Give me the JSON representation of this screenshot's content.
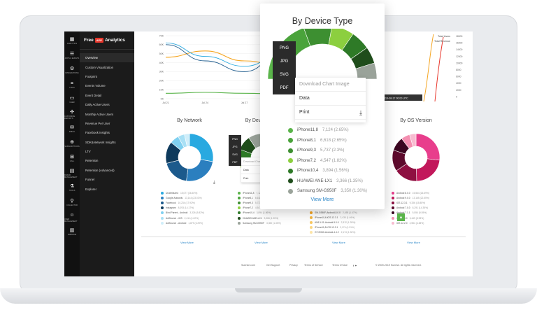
{
  "sidebar": {
    "icons": [
      {
        "glyph": "▦",
        "label": "ANALYTICS"
      },
      {
        "glyph": "☰",
        "label": "APPS & EVENTS"
      },
      {
        "glyph": "⚙",
        "label": "INTEGRATIONS"
      },
      {
        "glyph": "⌗",
        "label": "LINKS"
      },
      {
        "glyph": "▭",
        "label": "USER"
      },
      {
        "glyph": "✣",
        "label": "CUSTOMIZE REPORTS"
      },
      {
        "glyph": "✉",
        "label": "INBOX"
      },
      {
        "glyph": "⊕",
        "label": "SUBSCRIPTIONS"
      },
      {
        "glyph": "⊞",
        "label": "CALL"
      },
      {
        "glyph": "▤",
        "label": "FRAUD MANAGEMENT"
      },
      {
        "glyph": "⚗",
        "label": "TOOLS"
      },
      {
        "glyph": "⚲",
        "label": "COLLECTOR"
      },
      {
        "glyph": "☺",
        "label": "USER MANAGEMENT"
      },
      {
        "glyph": "▥",
        "label": "PREMIUM"
      }
    ],
    "brand": {
      "prefix": "Free",
      "badge": "APP",
      "name": "Analytics",
      "sub": "BEHAVIOR"
    },
    "menu": [
      "Overview",
      "Custom Visualization",
      "Footprint",
      "Events Volume",
      "Event Detail",
      "Daily Active Users",
      "Monthly Active Users",
      "Revenue Per User",
      "Facebook Insights",
      "SDK&Network Insights",
      "LTV",
      "Retention",
      "Retention (Advanced)",
      "Funnel",
      "Explorer"
    ]
  },
  "topChart": {
    "yTicks": [
      "70K",
      "60K",
      "50K",
      "40K",
      "30K",
      "20K",
      "10K",
      "0K"
    ],
    "xTicks": [
      "Jul 21",
      "Jul 24",
      "Jul 27",
      "Jul 30",
      "Aug 02"
    ],
    "legend": [
      "Total Users",
      "Total Revenue"
    ],
    "rightTicks": [
      "18000",
      "16000",
      "14000",
      "12000",
      "10000",
      "8000",
      "6000",
      "4000",
      "2000",
      "0"
    ],
    "tooltip": "2019-08-17 00:00 UTC"
  },
  "cards": {
    "network": {
      "title": "By Network",
      "items": [
        {
          "label": "Unattributed",
          "value": "15,077 (26.40%)",
          "color": "#29a9e0"
        },
        {
          "label": "Google Adwords",
          "value": "13,144 (23.02%)",
          "color": "#2b7fbf"
        },
        {
          "label": "Facebook",
          "value": "10,234 (17.92%)",
          "color": "#1c5a8c"
        },
        {
          "label": "Instagram",
          "value": "8,093 (14.17%)",
          "color": "#0e3a5c"
        },
        {
          "label": "Bind Parent - Android",
          "value": "3,326 (5.82%)",
          "color": "#7fd0f0"
        },
        {
          "label": "AdiSource - iOS",
          "value": "2,411 (4.22%)",
          "color": "#a8e0f5"
        },
        {
          "label": "AdiSource - Android",
          "value": "1,879 (3.29%)",
          "color": "#cfeefa"
        }
      ],
      "viewMore": "View More"
    },
    "device": {
      "title": "By Device Type",
      "items": [
        {
          "label": "iPhone11,8",
          "value": "7,124 (2.65%)",
          "color": "#5ab44a"
        },
        {
          "label": "iPhone8,1",
          "value": "6,618 (2.65%)",
          "color": "#4aa33b"
        },
        {
          "label": "iPhone9,3",
          "value": "5,737 (2.3%)",
          "color": "#3d8f31"
        },
        {
          "label": "iPhone7,2",
          "value": "4,547 (1.82%)",
          "color": "#8ccf3f"
        },
        {
          "label": "iPhone10,4",
          "value": "3,894 (1.56%)",
          "color": "#2e7a27"
        },
        {
          "label": "HUAWEI ANE-LX1",
          "value": "3,366 (1.35%)",
          "color": "#1f4d1b"
        },
        {
          "label": "Samsung SM-G950F",
          "value": "3,350 (1.30%)",
          "color": "#9aa39a"
        }
      ],
      "viewMore": "View More"
    },
    "sdk": {
      "items": [
        {
          "label": "SM-G950F-Android-8.0.0",
          "value": "2,455 (1.47%)",
          "color": "#f5a623"
        },
        {
          "label": "iPhone10,6-iOS-12.3.1",
          "value": "2,430 (1.46%)",
          "color": "#f7b840"
        },
        {
          "label": "ANE-LX1-Android-9.0.0",
          "value": "2,312 (1.39%)",
          "color": "#f9c860"
        },
        {
          "label": "iPhone11,8-iOS-12.3.1",
          "value": "2,174 (1.31%)",
          "color": "#fbd680"
        },
        {
          "label": "GT-I9060-Android-4.4.2",
          "value": "2,174 (1.30%)",
          "color": "#fde4a6"
        }
      ],
      "viewMore": "View More"
    },
    "os": {
      "title": "By OS Version",
      "items": [
        {
          "label": "Android 8.0.0",
          "value": "15,564 (26.69%)",
          "color": "#e83e8c"
        },
        {
          "label": "Android 9.0.0",
          "value": "13,165 (22.55%)",
          "color": "#c2185b"
        },
        {
          "label": "iOS 12.3.1",
          "value": "9,336 (15.88%)",
          "color": "#8e1041"
        },
        {
          "label": "Android 7.0.0",
          "value": "8,291 (14.35%)",
          "color": "#5d0a2c"
        },
        {
          "label": "Android 7.1.1",
          "value": "5,554 (9.55%)",
          "color": "#3b0620"
        },
        {
          "label": "iOS 12.4.0",
          "value": "3,449 (5.93%)",
          "color": "#f48fb1"
        },
        {
          "label": "iOS 12.2.0",
          "value": "2,554 (4.38%)",
          "color": "#f8bbd0"
        }
      ],
      "viewMore": "View More"
    }
  },
  "smallExport": [
    "PNG",
    "JPG",
    "SVG",
    "PDF"
  ],
  "smallDownload": [
    "Download Chart Image",
    "Data",
    "Print"
  ],
  "popup": {
    "title": "By Device Type",
    "export": [
      "PNG",
      "JPG",
      "SVG",
      "PDF"
    ],
    "download": [
      "Download Chart Image",
      "Data",
      "Print"
    ],
    "viewMore": "View More"
  },
  "footer": [
    "Sunrise.com",
    "Get Support",
    "Privacy",
    "Terms of Service",
    "Terms Of Use",
    "© 2009-2019 Sunrise. All rights reserved."
  ],
  "chart_data": [
    {
      "type": "line",
      "title": "",
      "x": [
        "Jul 21",
        "Jul 24",
        "Jul 27",
        "Jul 30",
        "Aug 02"
      ],
      "ylim": [
        0,
        70000
      ],
      "series": [
        {
          "name": "Total Users",
          "values": [
            46000,
            53000,
            42000,
            36000,
            57000
          ]
        },
        {
          "name": "Total Revenue",
          "values": [
            6000,
            7000,
            6000,
            5000,
            6000
          ]
        }
      ]
    },
    {
      "type": "pie",
      "title": "By Network",
      "categories": [
        "Unattributed",
        "Google Adwords",
        "Facebook",
        "Instagram",
        "Bind Parent - Android",
        "AdiSource - iOS",
        "AdiSource - Android"
      ],
      "values": [
        26.4,
        23.02,
        17.92,
        14.17,
        5.82,
        4.22,
        3.29
      ]
    },
    {
      "type": "pie",
      "title": "By Device Type",
      "categories": [
        "iPhone11,8",
        "iPhone8,1",
        "iPhone9,3",
        "iPhone7,2",
        "iPhone10,4",
        "HUAWEI ANE-LX1",
        "Samsung SM-G950F"
      ],
      "values": [
        2.65,
        2.65,
        2.3,
        1.82,
        1.56,
        1.35,
        1.3
      ]
    },
    {
      "type": "pie",
      "title": "By OS Version",
      "categories": [
        "Android 8.0.0",
        "Android 9.0.0",
        "iOS 12.3.1",
        "Android 7.0.0",
        "Android 7.1.1",
        "iOS 12.4.0",
        "iOS 12.2.0"
      ],
      "values": [
        26.69,
        22.55,
        15.88,
        14.35,
        9.55,
        5.93,
        4.38
      ]
    }
  ]
}
